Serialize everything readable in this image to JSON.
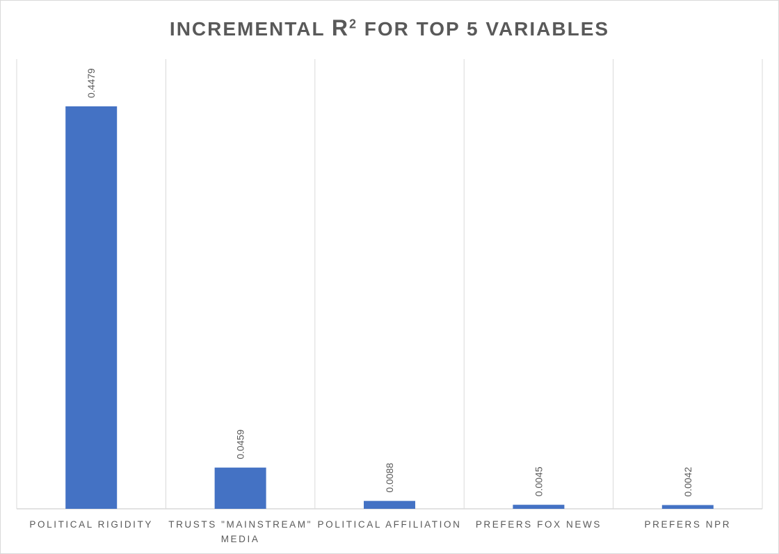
{
  "chart_data": {
    "type": "bar",
    "title": {
      "prefix": "INCREMENTAL ",
      "r": "R",
      "superscript": "2",
      "suffix": " FOR TOP 5 VARIABLES"
    },
    "categories": [
      [
        "POLITICAL RIGIDITY"
      ],
      [
        "TRUSTS \"MAINSTREAM\"",
        "MEDIA"
      ],
      [
        "POLITICAL AFFILIATION"
      ],
      [
        "PREFERS FOX NEWS"
      ],
      [
        "PREFERS NPR"
      ]
    ],
    "values": [
      0.4479,
      0.0459,
      0.0088,
      0.0045,
      0.0042
    ],
    "data_labels": [
      "0.4479",
      "0.0459",
      "0.0088",
      "0.0045",
      "0.0042"
    ],
    "ylim": [
      0,
      0.5
    ],
    "bar_color": "#4472C4",
    "gridline_color": "#d9d9d9",
    "vertical_gridlines": true
  }
}
